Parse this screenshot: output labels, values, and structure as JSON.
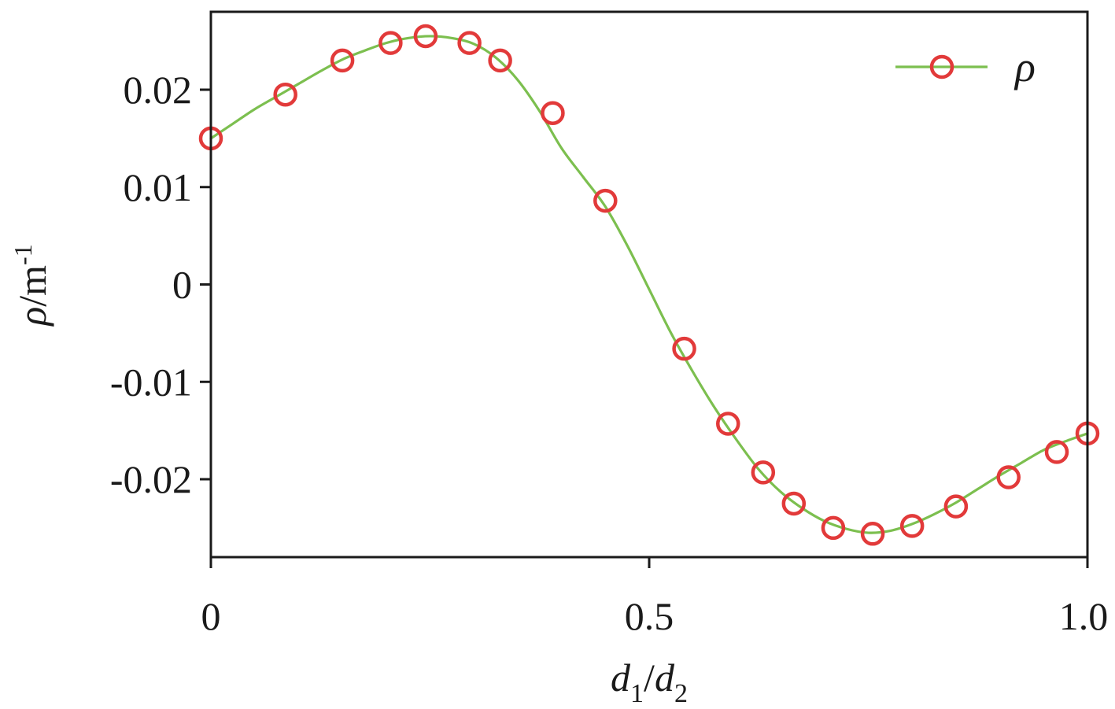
{
  "chart_data": {
    "type": "line",
    "xlabel": {
      "main": "d",
      "sub1": "1",
      "sep": "/",
      "main2": "d",
      "sub2": "2"
    },
    "ylabel": {
      "sym": "ρ",
      "unit": "/m",
      "sup": "-1"
    },
    "xlim": [
      0,
      1.0
    ],
    "ylim": [
      -0.028,
      0.028
    ],
    "x_ticks": [
      0,
      0.5,
      1.0
    ],
    "x_tick_labels": [
      "0",
      "0.5",
      "1.0"
    ],
    "y_ticks": [
      -0.02,
      -0.01,
      0,
      0.01,
      0.02
    ],
    "y_tick_labels": [
      "-0.02",
      "-0.01",
      "0",
      "0.01",
      "0.02"
    ],
    "grid": false,
    "legend_position": "top-right",
    "series": [
      {
        "name": "ρ",
        "line_color": "#7cbf4f",
        "marker": "circle",
        "marker_edge_color": "#e23a3a",
        "curve_samples": [
          [
            0.0,
            0.015
          ],
          [
            0.025,
            0.0165
          ],
          [
            0.05,
            0.018
          ],
          [
            0.075,
            0.0193
          ],
          [
            0.1,
            0.0206
          ],
          [
            0.125,
            0.0219
          ],
          [
            0.15,
            0.0231
          ],
          [
            0.175,
            0.024
          ],
          [
            0.2,
            0.0248
          ],
          [
            0.225,
            0.0253
          ],
          [
            0.25,
            0.0255
          ],
          [
            0.275,
            0.0253
          ],
          [
            0.3,
            0.0247
          ],
          [
            0.325,
            0.0233
          ],
          [
            0.35,
            0.021
          ],
          [
            0.375,
            0.0178
          ],
          [
            0.4,
            0.014
          ],
          [
            0.425,
            0.011
          ],
          [
            0.45,
            0.008
          ],
          [
            0.475,
            0.004
          ],
          [
            0.5,
            -0.0005
          ],
          [
            0.525,
            -0.005
          ],
          [
            0.55,
            -0.009
          ],
          [
            0.575,
            -0.0127
          ],
          [
            0.6,
            -0.016
          ],
          [
            0.625,
            -0.019
          ],
          [
            0.65,
            -0.0213
          ],
          [
            0.675,
            -0.023
          ],
          [
            0.7,
            -0.0243
          ],
          [
            0.725,
            -0.0251
          ],
          [
            0.75,
            -0.0255
          ],
          [
            0.775,
            -0.0253
          ],
          [
            0.8,
            -0.0246
          ],
          [
            0.825,
            -0.0236
          ],
          [
            0.85,
            -0.0224
          ],
          [
            0.875,
            -0.021
          ],
          [
            0.9,
            -0.0196
          ],
          [
            0.925,
            -0.0183
          ],
          [
            0.95,
            -0.017
          ],
          [
            0.975,
            -0.0161
          ],
          [
            1.0,
            -0.0153
          ]
        ],
        "markers": [
          [
            0.0,
            0.015
          ],
          [
            0.085,
            0.0195
          ],
          [
            0.15,
            0.023
          ],
          [
            0.205,
            0.0248
          ],
          [
            0.245,
            0.0255
          ],
          [
            0.295,
            0.0248
          ],
          [
            0.33,
            0.023
          ],
          [
            0.39,
            0.0176
          ],
          [
            0.45,
            0.0086
          ],
          [
            0.54,
            -0.0066
          ],
          [
            0.59,
            -0.0143
          ],
          [
            0.63,
            -0.0193
          ],
          [
            0.665,
            -0.0225
          ],
          [
            0.71,
            -0.025
          ],
          [
            0.755,
            -0.0256
          ],
          [
            0.8,
            -0.0248
          ],
          [
            0.85,
            -0.0228
          ],
          [
            0.91,
            -0.0198
          ],
          [
            0.965,
            -0.0172
          ],
          [
            1.0,
            -0.0153
          ]
        ]
      }
    ]
  }
}
